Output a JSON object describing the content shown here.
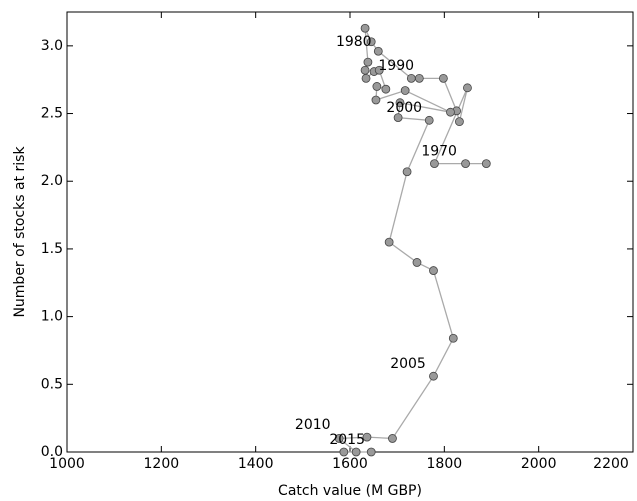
{
  "chart_data": {
    "type": "line",
    "xlabel": "Catch value (M GBP)",
    "ylabel": "Number of stocks at risk",
    "xlim": [
      1000,
      2200
    ],
    "xticks": [
      1000,
      1200,
      1400,
      1600,
      1800,
      2000,
      2200
    ],
    "ylim": [
      0,
      3.25
    ],
    "yticks": [
      {
        "value": 0,
        "label": "0.0"
      },
      0.5,
      {
        "value": 1,
        "label": "1.0"
      },
      1.5,
      {
        "value": 2,
        "label": "2.0"
      },
      2.5,
      {
        "value": 3,
        "label": "3.0"
      }
    ],
    "line_color": "#aaaaaa",
    "marker_color": "#999999",
    "x": [
      1889,
      1845,
      1779,
      1849,
      1832,
      1826,
      1798,
      1747,
      1730,
      1660,
      1645,
      1632,
      1638,
      1632,
      1634,
      1651,
      1662,
      1676,
      1657,
      1655,
      1717,
      1813,
      1706,
      1702,
      1768,
      1721,
      1683,
      1742,
      1777,
      1819,
      1777,
      1690,
      1636,
      1577,
      1613,
      1587,
      1645
    ],
    "y": [
      2.13,
      2.13,
      2.13,
      2.69,
      2.44,
      2.52,
      2.76,
      2.76,
      2.76,
      2.96,
      3.03,
      3.13,
      2.88,
      2.82,
      2.76,
      2.81,
      2.82,
      2.68,
      2.7,
      2.6,
      2.67,
      2.51,
      2.58,
      2.47,
      2.45,
      2.07,
      1.55,
      1.4,
      1.34,
      0.84,
      0.56,
      0.1,
      0.11,
      0.1,
      0,
      0,
      0
    ],
    "annotations": [
      {
        "text": "1970",
        "x": 1789,
        "y": 2.22
      },
      {
        "text": "1980",
        "x": 1608,
        "y": 3.03
      },
      {
        "text": "1990",
        "x": 1698,
        "y": 2.85
      },
      {
        "text": "2000",
        "x": 1715,
        "y": 2.54
      },
      {
        "text": "2005",
        "x": 1723,
        "y": 0.65
      },
      {
        "text": "2010",
        "x": 1521,
        "y": 0.2
      },
      {
        "text": "2015",
        "x": 1594,
        "y": 0.09
      }
    ]
  }
}
